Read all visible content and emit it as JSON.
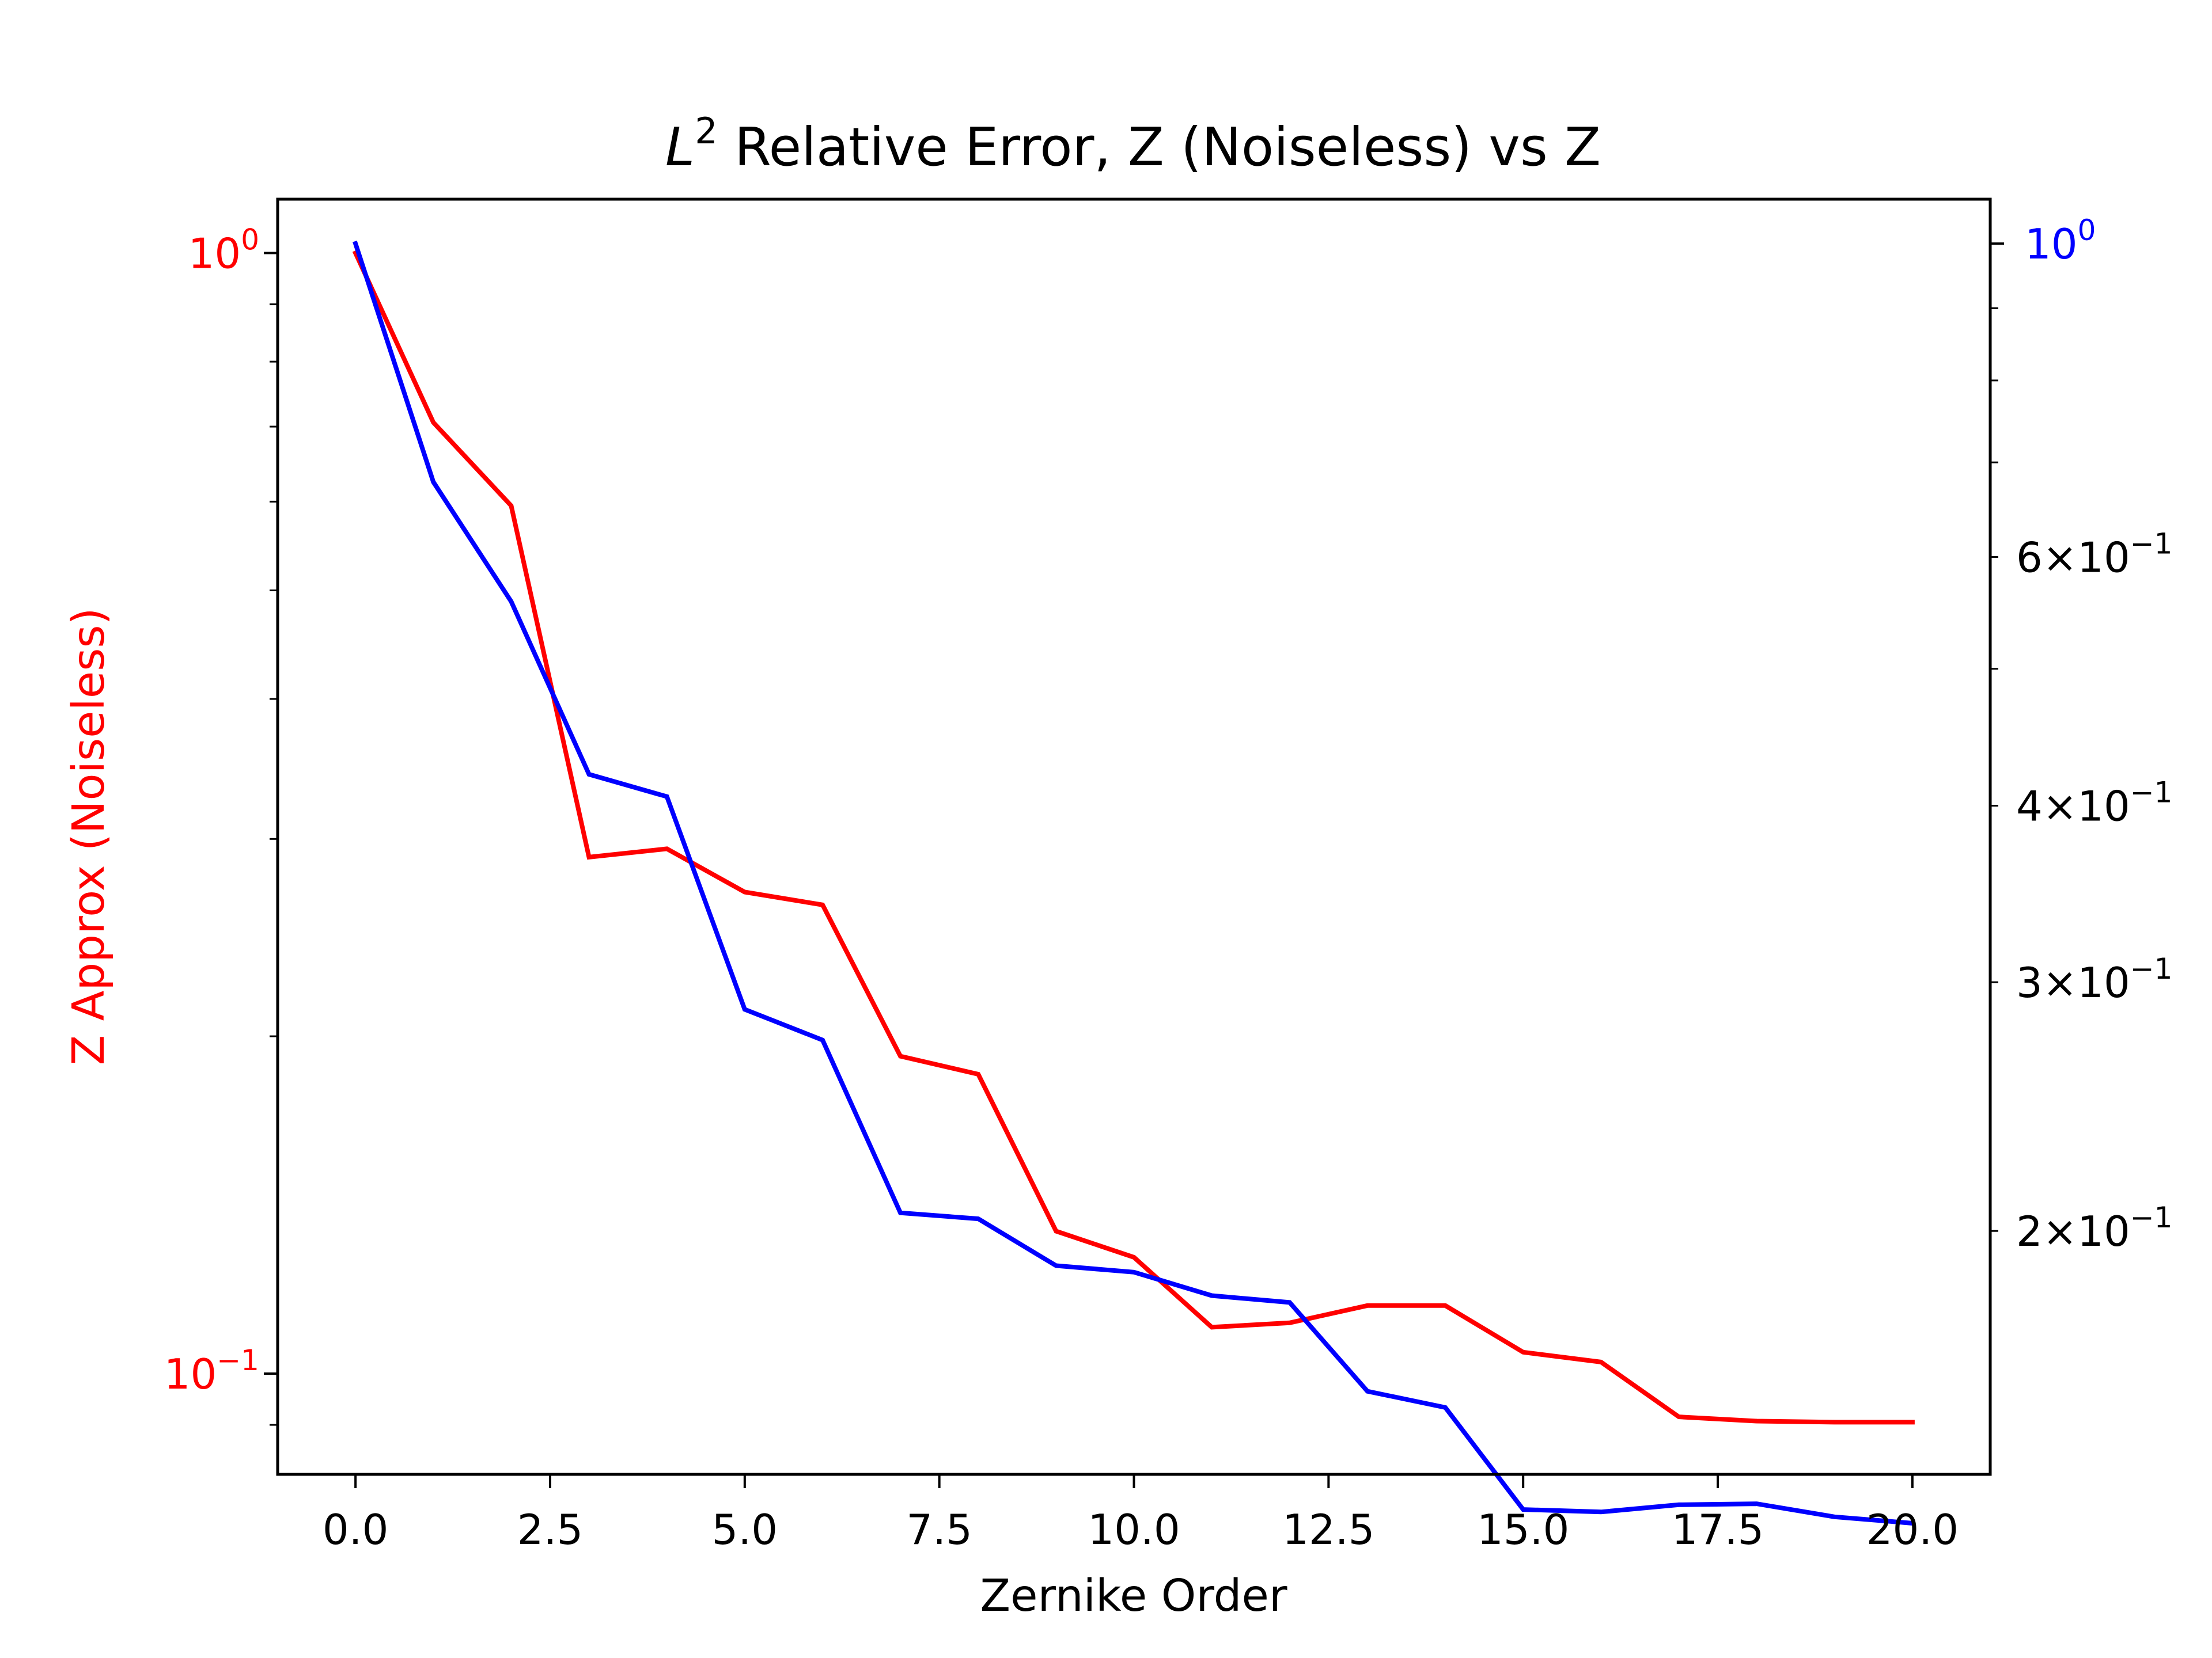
{
  "chart_data": {
    "type": "line",
    "title": "L² Relative Error, Z (Noiseless) vs Z",
    "title_parts": {
      "italic": "L",
      "sup": "2",
      "rest": " Relative Error, Z (Noiseless) vs Z"
    },
    "xlabel": "Zernike Order",
    "ylabel_left": "Z Approx (Noiseless)",
    "x_scale": "linear",
    "y_scale": "log",
    "xlim": [
      -1,
      21
    ],
    "ylim_left": [
      0.0813,
      1.117
    ],
    "ylim_right": [
      0.1345,
      1.075
    ],
    "x_ticks": [
      0,
      2.5,
      5,
      7.5,
      10,
      12.5,
      15,
      17.5,
      20
    ],
    "x_tick_labels": [
      "0.0",
      "2.5",
      "5.0",
      "7.5",
      "10.0",
      "12.5",
      "15.0",
      "17.5",
      "20.0"
    ],
    "y_left_major_ticks": [
      {
        "value": 1,
        "base": "10",
        "exp": "0"
      },
      {
        "value": 0.1,
        "base": "10",
        "exp": "−1"
      }
    ],
    "y_right_major_ticks": [
      {
        "value": 1,
        "base": "10",
        "exp": "0"
      }
    ],
    "y_right_minor_labeled": [
      {
        "value": 0.6,
        "mant": "6",
        "base": "×10",
        "exp": "−1"
      },
      {
        "value": 0.4,
        "mant": "4",
        "base": "×10",
        "exp": "−1"
      },
      {
        "value": 0.3,
        "mant": "3",
        "base": "×10",
        "exp": "−1"
      },
      {
        "value": 0.2,
        "mant": "2",
        "base": "×10",
        "exp": "−1"
      }
    ],
    "y_right_minor_unlabeled": [
      0.9,
      0.8,
      0.7,
      0.5
    ],
    "grid": false,
    "legend": "none",
    "series": [
      {
        "axis": "left",
        "color": "#ff0000",
        "x": [
          0,
          1,
          2,
          3,
          4,
          5,
          6,
          7,
          8,
          9,
          10,
          11,
          12,
          13,
          14,
          15,
          16,
          17,
          18,
          19,
          20
        ],
        "y": [
          1.0,
          0.706,
          0.595,
          0.289,
          0.294,
          0.269,
          0.262,
          0.192,
          0.185,
          0.134,
          0.127,
          0.11,
          0.111,
          0.115,
          0.115,
          0.1045,
          0.1024,
          0.0915,
          0.0907,
          0.0905,
          0.0905
        ]
      },
      {
        "axis": "right",
        "color": "#0000ff",
        "x": [
          0,
          1,
          2,
          3,
          4,
          5,
          6,
          7,
          8,
          9,
          10,
          11,
          12,
          13,
          14,
          15,
          16,
          17,
          18,
          19,
          20
        ],
        "y": [
          1.0,
          0.678,
          0.558,
          0.421,
          0.406,
          0.287,
          0.273,
          0.206,
          0.204,
          0.189,
          0.187,
          0.18,
          0.178,
          0.154,
          0.15,
          0.127,
          0.1265,
          0.128,
          0.1282,
          0.1255,
          0.1242
        ]
      }
    ]
  }
}
